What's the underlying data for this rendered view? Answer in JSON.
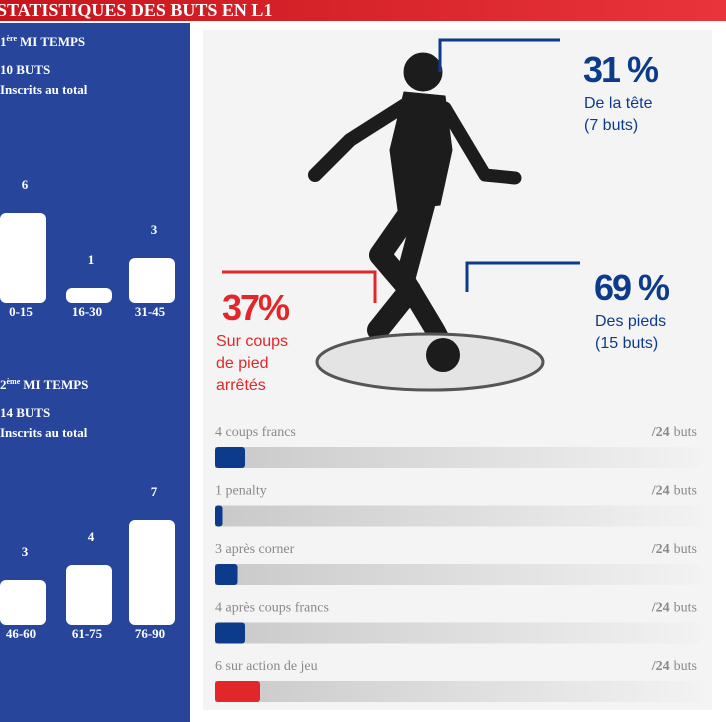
{
  "header": {
    "title": "STATISTIQUES DES BUTS EN L1"
  },
  "chart_data": [
    {
      "type": "bar",
      "title_parts": [
        "1",
        "ère",
        "MI TEMPS"
      ],
      "subtitle": "10 BUTS",
      "note": "Inscrits au total",
      "categories": [
        "0-15",
        "16-30",
        "31-45"
      ],
      "values": [
        6,
        1,
        3
      ],
      "color": "#ffffff"
    },
    {
      "type": "bar",
      "title_parts": [
        "2",
        "ème",
        "MI TEMPS"
      ],
      "subtitle": "14 BUTS",
      "note": "Inscrits au total",
      "categories": [
        "46-60",
        "61-75",
        "76-90"
      ],
      "values": [
        3,
        4,
        7
      ],
      "color": "#ffffff"
    },
    {
      "type": "progress",
      "rows": [
        {
          "label": "4 coups francs",
          "value": 4,
          "total": {
            "value": 24,
            "label": "/24"
          },
          "unit": "buts",
          "color": "#0d3b8c"
        },
        {
          "label": "1 penalty",
          "value": 1,
          "total": {
            "value": 24,
            "label": "/24"
          },
          "unit": "buts",
          "color": "#0d3b8c"
        },
        {
          "label": "3 après corner",
          "value": 3,
          "total": {
            "value": 24,
            "label": "/24"
          },
          "unit": "buts",
          "color": "#0d3b8c"
        },
        {
          "label": "4 après coups francs",
          "value": 4,
          "total": {
            "value": 24,
            "label": "/24"
          },
          "unit": "buts",
          "color": "#0d3b8c"
        },
        {
          "label": "6 sur action de jeu",
          "value": 6,
          "total": {
            "value": 24,
            "label": "/24"
          },
          "unit": "buts",
          "color": "#e3262a"
        }
      ]
    }
  ],
  "annotations": [
    {
      "percent": {
        "value": 31,
        "label": "31 %"
      },
      "lines": [
        "De la tête",
        "(7 buts)"
      ],
      "color": "#0d3b8c"
    },
    {
      "percent": {
        "value": 69,
        "label": "69 %"
      },
      "lines": [
        "Des pieds",
        "(15 buts)"
      ],
      "color": "#0d3b8c"
    },
    {
      "percent": {
        "value": 37,
        "label": "37%"
      },
      "lines": [
        "Sur coups",
        "de pied",
        "arrêtés"
      ],
      "color": "#e3262a"
    }
  ]
}
